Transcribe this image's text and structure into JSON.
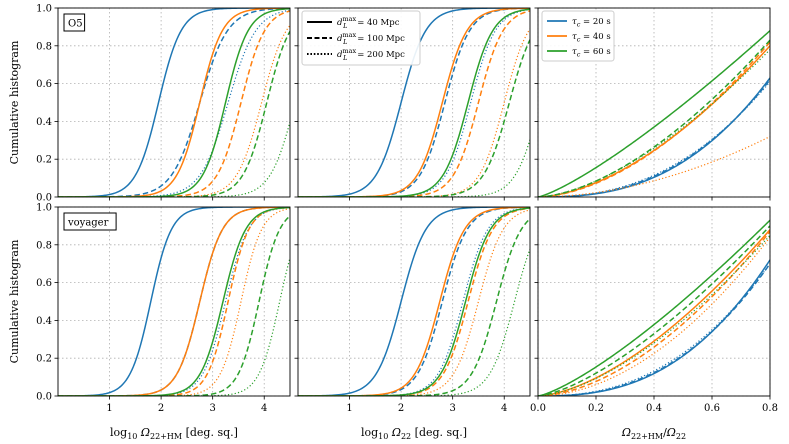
{
  "chart_data": {
    "type": "line",
    "colors": {
      "tau20": "#1f77b4",
      "tau40": "#ff7f0e",
      "tau60": "#2ca02c"
    },
    "ylabel": "Cumulative histogram",
    "ylim": [
      0.0,
      1.0
    ],
    "y_ticks": [
      "0.0",
      "0.2",
      "0.4",
      "0.6",
      "0.8",
      "1.0"
    ],
    "row_labels": [
      "O5",
      "voyager"
    ],
    "linestyle_legend": {
      "entries": [
        {
          "style": "solid",
          "base": "d",
          "sub": "L",
          "sup": "max",
          "text": "= 40 Mpc"
        },
        {
          "style": "dashed",
          "base": "d",
          "sub": "L",
          "sup": "max",
          "text": "= 100 Mpc"
        },
        {
          "style": "dotted",
          "base": "d",
          "sub": "L",
          "sup": "max",
          "text": "= 200 Mpc"
        }
      ]
    },
    "color_legend": {
      "entries": [
        {
          "color": "tau20",
          "base": "τ",
          "sub": "c",
          "text": "= 20 s"
        },
        {
          "color": "tau40",
          "base": "τ",
          "sub": "c",
          "text": "= 40 s"
        },
        {
          "color": "tau60",
          "base": "τ",
          "sub": "c",
          "text": "= 60 s"
        }
      ]
    },
    "columns": [
      {
        "kind": "log",
        "xlim": [
          0.0,
          4.5
        ],
        "x_ticks": [
          "1",
          "2",
          "3",
          "4"
        ],
        "xlabel": {
          "pre": "log",
          "pre_sub": "10",
          "sym": "Ω",
          "sub": "22+HM",
          "post": "[deg. sq.]"
        }
      },
      {
        "kind": "log",
        "xlim": [
          0.0,
          4.5
        ],
        "x_ticks": [
          "1",
          "2",
          "3",
          "4"
        ],
        "xlabel": {
          "pre": "log",
          "pre_sub": "10",
          "sym": "Ω",
          "sub": "22",
          "post": "[deg. sq.]"
        }
      },
      {
        "kind": "ratio",
        "xlim": [
          0.0,
          0.8
        ],
        "x_ticks": [
          "0.0",
          "0.2",
          "0.4",
          "0.6",
          "0.8"
        ],
        "xlabel": {
          "sym": "Ω",
          "sub": "22+HM",
          "slash": "/",
          "sym2": "Ω",
          "sub2": "22"
        }
      }
    ],
    "series_note": "logistic CDFs: median = log10 sky area where cumulative fraction is 0.5, width = spread; ratio panels use power-law CDFs y = A*(x/0.8)^p",
    "panels": [
      {
        "row": 0,
        "col": 0,
        "series": [
          {
            "color": "tau20",
            "style": "solid",
            "median": 1.95,
            "width": 0.22
          },
          {
            "color": "tau20",
            "style": "dashed",
            "median": 2.75,
            "width": 0.27
          },
          {
            "color": "tau20",
            "style": "dotted",
            "median": 3.3,
            "width": 0.27
          },
          {
            "color": "tau40",
            "style": "solid",
            "median": 2.75,
            "width": 0.22
          },
          {
            "color": "tau40",
            "style": "dashed",
            "median": 3.55,
            "width": 0.23
          },
          {
            "color": "tau40",
            "style": "dotted",
            "median": 3.95,
            "width": 0.24
          },
          {
            "color": "tau60",
            "style": "solid",
            "median": 3.25,
            "width": 0.22
          },
          {
            "color": "tau60",
            "style": "dashed",
            "median": 4.05,
            "width": 0.23
          },
          {
            "color": "tau60",
            "style": "dotted",
            "median": 4.6,
            "width": 0.24
          }
        ]
      },
      {
        "row": 0,
        "col": 1,
        "series": [
          {
            "color": "tau20",
            "style": "solid",
            "median": 2.0,
            "width": 0.24
          },
          {
            "color": "tau20",
            "style": "dashed",
            "median": 2.85,
            "width": 0.24
          },
          {
            "color": "tau20",
            "style": "dotted",
            "median": 3.35,
            "width": 0.24
          },
          {
            "color": "tau40",
            "style": "solid",
            "median": 2.8,
            "width": 0.24
          },
          {
            "color": "tau40",
            "style": "dashed",
            "median": 3.5,
            "width": 0.24
          },
          {
            "color": "tau40",
            "style": "dotted",
            "median": 4.0,
            "width": 0.24
          },
          {
            "color": "tau60",
            "style": "solid",
            "median": 3.3,
            "width": 0.24
          },
          {
            "color": "tau60",
            "style": "dashed",
            "median": 4.1,
            "width": 0.25
          },
          {
            "color": "tau60",
            "style": "dotted",
            "median": 4.7,
            "width": 0.24
          }
        ]
      },
      {
        "row": 0,
        "col": 2,
        "series": [
          {
            "color": "tau20",
            "style": "solid",
            "A": 0.63,
            "p": 2.6
          },
          {
            "color": "tau20",
            "style": "dashed",
            "A": 0.62,
            "p": 2.5
          },
          {
            "color": "tau20",
            "style": "dotted",
            "A": 0.61,
            "p": 2.4
          },
          {
            "color": "tau40",
            "style": "solid",
            "A": 0.8,
            "p": 1.7
          },
          {
            "color": "tau40",
            "style": "dashed",
            "A": 0.82,
            "p": 1.75
          },
          {
            "color": "tau40",
            "style": "dotted",
            "A": 0.32,
            "p": 1.9
          },
          {
            "color": "tau60",
            "style": "solid",
            "A": 0.88,
            "p": 1.25
          },
          {
            "color": "tau60",
            "style": "dashed",
            "A": 0.83,
            "p": 1.65
          },
          {
            "color": "tau60",
            "style": "dotted",
            "A": 0.78,
            "p": 1.6
          }
        ]
      },
      {
        "row": 1,
        "col": 0,
        "series": [
          {
            "color": "tau20",
            "style": "solid",
            "median": 1.8,
            "width": 0.2
          },
          {
            "color": "tau20",
            "style": "dashed",
            "median": 2.75,
            "width": 0.22
          },
          {
            "color": "tau20",
            "style": "dotted",
            "median": 3.25,
            "width": 0.22
          },
          {
            "color": "tau40",
            "style": "solid",
            "median": 2.75,
            "width": 0.22
          },
          {
            "color": "tau40",
            "style": "dashed",
            "median": 3.3,
            "width": 0.2
          },
          {
            "color": "tau40",
            "style": "dotted",
            "median": 3.55,
            "width": 0.2
          },
          {
            "color": "tau60",
            "style": "solid",
            "median": 3.2,
            "width": 0.22
          },
          {
            "color": "tau60",
            "style": "dashed",
            "median": 3.9,
            "width": 0.2
          },
          {
            "color": "tau60",
            "style": "dotted",
            "median": 4.3,
            "width": 0.2
          }
        ]
      },
      {
        "row": 1,
        "col": 1,
        "series": [
          {
            "color": "tau20",
            "style": "solid",
            "median": 2.0,
            "width": 0.24
          },
          {
            "color": "tau20",
            "style": "dashed",
            "median": 2.8,
            "width": 0.24
          },
          {
            "color": "tau20",
            "style": "dotted",
            "median": 3.2,
            "width": 0.24
          },
          {
            "color": "tau40",
            "style": "solid",
            "median": 2.75,
            "width": 0.24
          },
          {
            "color": "tau40",
            "style": "dashed",
            "median": 3.3,
            "width": 0.24
          },
          {
            "color": "tau40",
            "style": "dotted",
            "median": 3.5,
            "width": 0.24
          },
          {
            "color": "tau60",
            "style": "solid",
            "median": 3.25,
            "width": 0.24
          },
          {
            "color": "tau60",
            "style": "dashed",
            "median": 3.85,
            "width": 0.24
          },
          {
            "color": "tau60",
            "style": "dotted",
            "median": 4.2,
            "width": 0.24
          }
        ]
      },
      {
        "row": 1,
        "col": 2,
        "series": [
          {
            "color": "tau20",
            "style": "solid",
            "A": 0.72,
            "p": 2.6
          },
          {
            "color": "tau20",
            "style": "dashed",
            "A": 0.7,
            "p": 2.5
          },
          {
            "color": "tau20",
            "style": "dotted",
            "A": 0.7,
            "p": 2.4
          },
          {
            "color": "tau40",
            "style": "solid",
            "A": 0.88,
            "p": 1.6
          },
          {
            "color": "tau40",
            "style": "dashed",
            "A": 0.87,
            "p": 1.75
          },
          {
            "color": "tau40",
            "style": "dotted",
            "A": 0.84,
            "p": 1.9
          },
          {
            "color": "tau60",
            "style": "solid",
            "A": 0.93,
            "p": 1.3
          },
          {
            "color": "tau60",
            "style": "dashed",
            "A": 0.9,
            "p": 1.45
          },
          {
            "color": "tau60",
            "style": "dotted",
            "A": 0.85,
            "p": 1.6
          }
        ]
      }
    ]
  }
}
